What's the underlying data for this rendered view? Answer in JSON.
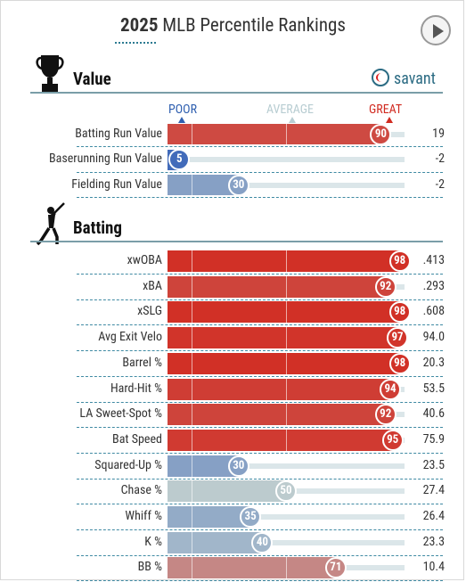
{
  "header": {
    "title_bold": "2025",
    "title_rest": " MLB Percentile Rankings"
  },
  "brand": {
    "name": "savant"
  },
  "scale": {
    "poor": "POOR",
    "average": "AVERAGE",
    "great": "GREAT"
  },
  "colors": {
    "poor": "#3060b0",
    "average": "#b8cdd2",
    "great": "#d12b21"
  },
  "chart_data": {
    "type": "bar",
    "xlim": [
      0,
      100
    ],
    "sections": [
      {
        "title": "Value",
        "rows": [
          {
            "label": "Batting Run Value",
            "percentile": 90,
            "value": "19"
          },
          {
            "label": "Baserunning Run Value",
            "percentile": 5,
            "value": "-2"
          },
          {
            "label": "Fielding Run Value",
            "percentile": 30,
            "value": "-2"
          }
        ]
      },
      {
        "title": "Batting",
        "rows": [
          {
            "label": "xwOBA",
            "percentile": 98,
            "value": ".413"
          },
          {
            "label": "xBA",
            "percentile": 92,
            "value": ".293"
          },
          {
            "label": "xSLG",
            "percentile": 98,
            "value": ".608"
          },
          {
            "label": "Avg Exit Velo",
            "percentile": 97,
            "value": "94.0"
          },
          {
            "label": "Barrel %",
            "percentile": 98,
            "value": "20.3"
          },
          {
            "label": "Hard-Hit %",
            "percentile": 94,
            "value": "53.5"
          },
          {
            "label": "LA Sweet-Spot %",
            "percentile": 92,
            "value": "40.6"
          },
          {
            "label": "Bat Speed",
            "percentile": 95,
            "value": "75.9"
          },
          {
            "label": "Squared-Up %",
            "percentile": 30,
            "value": "23.5"
          },
          {
            "label": "Chase %",
            "percentile": 50,
            "value": "27.4"
          },
          {
            "label": "Whiff %",
            "percentile": 35,
            "value": "26.4"
          },
          {
            "label": "K %",
            "percentile": 40,
            "value": "23.3"
          },
          {
            "label": "BB %",
            "percentile": 71,
            "value": "10.4"
          }
        ]
      }
    ]
  }
}
